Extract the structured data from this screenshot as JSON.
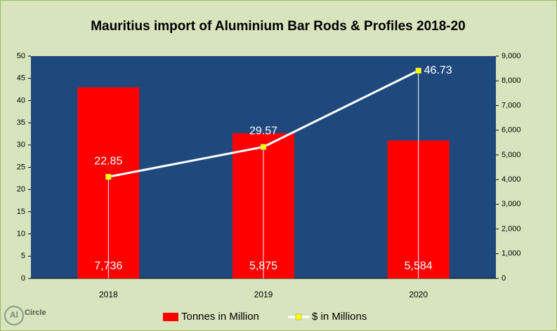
{
  "chart_data": {
    "type": "bar-line",
    "title": "Mauritius import of Aluminium Bar Rods & Profiles 2018-20",
    "logo": {
      "mark": "Al",
      "text": "Circle"
    },
    "categories": [
      "2018",
      "2019",
      "2020"
    ],
    "series": [
      {
        "name": "Tonnes in Million",
        "type": "bar",
        "axis": "y2",
        "color": "#ff0000",
        "values": [
          7736,
          5875,
          5584
        ],
        "value_labels": [
          "7,736",
          "5,875",
          "5,584"
        ]
      },
      {
        "name": "$ in Millions",
        "type": "line",
        "axis": "y",
        "color": "#ffffff",
        "marker_color": "#ffff00",
        "values": [
          22.85,
          29.57,
          46.73
        ]
      }
    ],
    "ylim": [
      0,
      50
    ],
    "yticks": [
      0,
      5,
      10,
      15,
      20,
      25,
      30,
      35,
      40,
      45,
      50
    ],
    "y2lim": [
      0,
      9000
    ],
    "y2ticks": [
      0,
      {
        "value": 1000,
        "label": "1,000"
      },
      {
        "value": 2000,
        "label": "2,000"
      },
      {
        "value": 3000,
        "label": "3,000"
      },
      {
        "value": 4000,
        "label": "4,000"
      },
      {
        "value": 5000,
        "label": "5,000"
      },
      {
        "value": 6000,
        "label": "6,000"
      },
      {
        "value": 7000,
        "label": "7,000"
      },
      {
        "value": 8000,
        "label": "8,000"
      },
      {
        "value": 9000,
        "label": "9,000"
      }
    ],
    "legend": "bottom"
  }
}
